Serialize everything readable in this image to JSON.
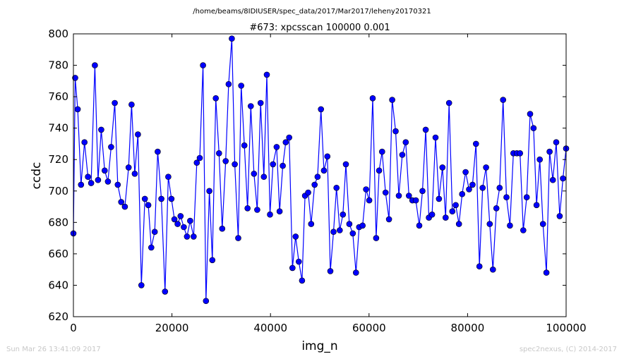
{
  "chart_data": {
    "type": "line",
    "suptitle": "/home/beams/8IDIUSER/spec_data/2017/Mar2017/leheny20170321",
    "title": "#673: xpcsscan 100000 0.001",
    "xlabel": "img_n",
    "ylabel": "ccdc",
    "xlim": [
      0,
      100000
    ],
    "ylim": [
      620,
      800
    ],
    "xticks": [
      0,
      20000,
      40000,
      60000,
      80000,
      100000
    ],
    "yticks": [
      620,
      640,
      660,
      680,
      700,
      720,
      740,
      760,
      780,
      800
    ],
    "grid": false,
    "line_color": "#0000ff",
    "marker_color": "#0000ff",
    "series": [
      {
        "x": [
          0,
          360,
          880,
          1550,
          2250,
          2950,
          3600,
          4350,
          5000,
          5650,
          6350,
          7000,
          7650,
          8400,
          9000,
          9700,
          10450,
          11200,
          11800,
          12450,
          13100,
          13800,
          14500,
          15200,
          15800,
          16500,
          17100,
          17850,
          18600,
          19250,
          19900,
          20500,
          21150,
          21750,
          22400,
          23050,
          23700,
          24400,
          25050,
          25650,
          26300,
          26900,
          27600,
          28200,
          28900,
          29550,
          30200,
          30900,
          31500,
          32150,
          32750,
          33450,
          34050,
          34700,
          35350,
          36000,
          36650,
          37300,
          38000,
          38650,
          39250,
          39900,
          40500,
          41250,
          41850,
          42500,
          43100,
          43800,
          44450,
          45100,
          45750,
          46400,
          47000,
          47650,
          48250,
          48950,
          49550,
          50250,
          50850,
          51550,
          52150,
          52800,
          53400,
          54050,
          54700,
          55300,
          56000,
          56700,
          57350,
          58000,
          58700,
          59400,
          60050,
          60750,
          61450,
          62050,
          62650,
          63350,
          64050,
          64700,
          65400,
          66050,
          66750,
          67450,
          68100,
          68800,
          69500,
          70200,
          70850,
          71500,
          72150,
          72800,
          73500,
          74200,
          74900,
          75550,
          76250,
          76900,
          77600,
          78250,
          78900,
          79600,
          80300,
          81000,
          81700,
          82400,
          83050,
          83750,
          84500,
          85150,
          85850,
          86500,
          87200,
          87900,
          88600,
          89300,
          90000,
          90650,
          91300,
          92000,
          92700,
          93400,
          94000,
          94650,
          95300,
          96000,
          96650,
          97300,
          98000,
          98700,
          99350,
          100000
        ],
        "y": [
          673,
          772,
          752,
          704,
          731,
          709,
          705,
          780,
          707,
          739,
          713,
          706,
          728,
          756,
          704,
          693,
          690,
          715,
          755,
          711,
          736,
          640,
          695,
          691,
          664,
          674,
          725,
          695,
          636,
          709,
          695,
          682,
          679,
          684,
          677,
          671,
          681,
          671,
          718,
          721,
          780,
          630,
          700,
          656,
          759,
          724,
          676,
          719,
          768,
          797,
          717,
          670,
          767,
          729,
          689,
          754,
          711,
          688,
          756,
          709,
          774,
          685,
          717,
          728,
          687,
          716,
          731,
          734,
          651,
          671,
          655,
          643,
          697,
          699,
          679,
          704,
          709,
          752,
          713,
          722,
          649,
          674,
          702,
          675,
          685,
          717,
          679,
          673,
          648,
          677,
          678,
          701,
          694,
          759,
          670,
          713,
          725,
          699,
          682,
          758,
          738,
          697,
          723,
          731,
          697,
          694,
          694,
          678,
          700,
          739,
          683,
          685,
          734,
          695,
          715,
          683,
          756,
          687,
          691,
          679,
          698,
          712,
          701,
          704,
          730,
          652,
          702,
          715,
          679,
          650,
          689,
          702,
          758,
          696,
          678,
          724,
          724,
          724,
          675,
          696,
          749,
          740,
          691,
          720,
          679,
          648,
          725,
          707,
          731,
          684,
          708,
          727
        ]
      }
    ]
  },
  "footer": {
    "timestamp": "Sun Mar 26 13:41:09 2017",
    "credit": "spec2nexus, (C) 2014-2017"
  }
}
